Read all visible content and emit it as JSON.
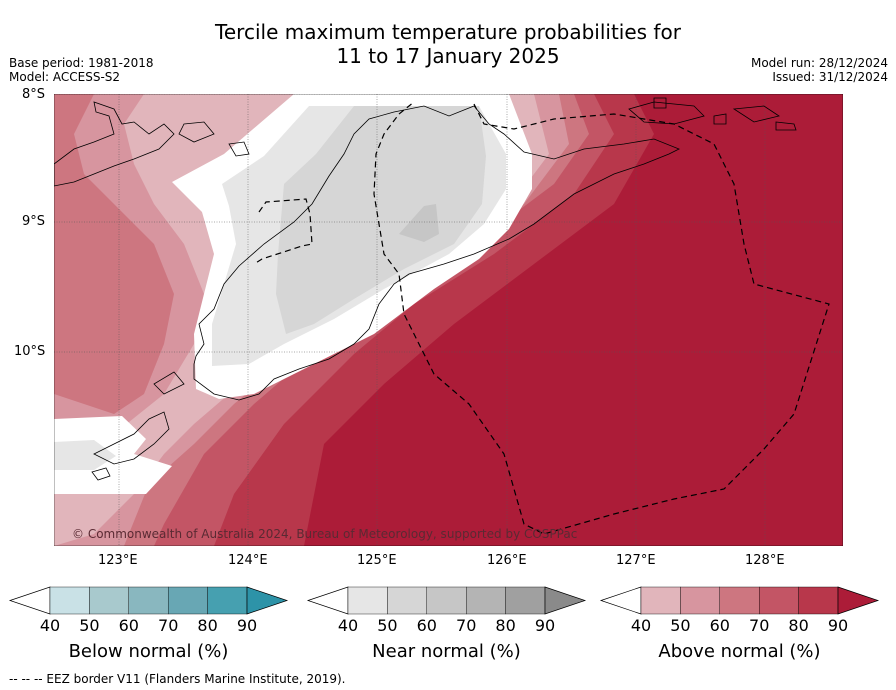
{
  "title": {
    "line1": "Tercile maximum temperature probabilities for",
    "line2": "11 to 17 January 2025"
  },
  "meta": {
    "base_period": "Base period: 1981-2018",
    "model": "Model: ACCESS-S2",
    "model_run": "Model run: 28/12/2024",
    "issued": "Issued: 31/12/2024"
  },
  "map": {
    "lat_labels": [
      "8°S",
      "9°S",
      "10°S"
    ],
    "lon_labels": [
      "123°E",
      "124°E",
      "125°E",
      "126°E",
      "127°E",
      "128°E"
    ],
    "copyright": "© Commonwealth of Australia 2024, Bureau of Meteorology, supported by COSPPac"
  },
  "colorbars": [
    {
      "label": "Below normal (%)",
      "ticks": [
        "40",
        "50",
        "60",
        "70",
        "80",
        "90"
      ],
      "colors": [
        "#ffffff",
        "#c9e1e6",
        "#a8c9cd",
        "#89b7bf",
        "#68a7b4",
        "#46a0b0",
        "#2d93a8"
      ]
    },
    {
      "label": "Near normal (%)",
      "ticks": [
        "40",
        "50",
        "60",
        "70",
        "80",
        "90"
      ],
      "colors": [
        "#ffffff",
        "#e6e6e6",
        "#d6d6d6",
        "#c6c6c6",
        "#b4b4b4",
        "#a0a0a0",
        "#8a8a8a"
      ]
    },
    {
      "label": "Above normal (%)",
      "ticks": [
        "40",
        "50",
        "60",
        "70",
        "80",
        "90"
      ],
      "colors": [
        "#ffffff",
        "#e1b5bb",
        "#d7959f",
        "#cd7680",
        "#c35565",
        "#b8374b",
        "#ac1c38"
      ]
    }
  ],
  "legend_note": "--  --  -- EEZ border V11 (Flanders Marine Institute, 2019)."
}
